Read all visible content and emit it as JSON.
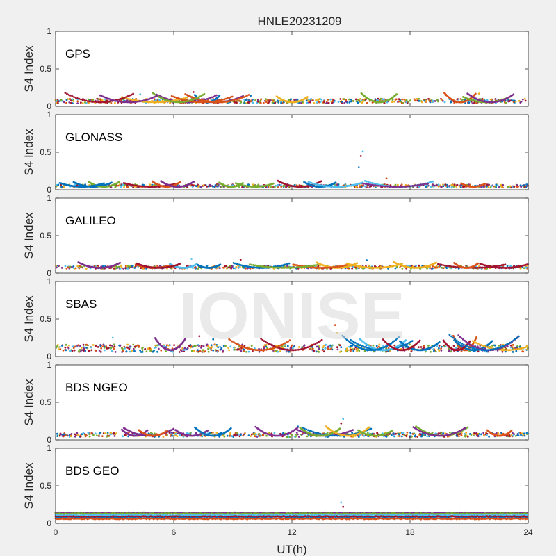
{
  "figure": {
    "title": "HNLE20231209",
    "watermark": "IONISE",
    "xlabel": "UT(h)"
  },
  "colors": [
    "#0072BD",
    "#D95319",
    "#EDB120",
    "#7E2F8E",
    "#77AC30",
    "#4DBEEE",
    "#A2142F"
  ],
  "chart_data": [
    {
      "type": "scatter",
      "panel_label": "GPS",
      "ylabel": "S4 Index",
      "xlim": [
        0,
        24
      ],
      "ylim": [
        0,
        1
      ],
      "xticks": [
        0,
        6,
        12,
        18,
        24
      ],
      "yticks": [
        0,
        0.5,
        1
      ],
      "grid": false,
      "baseline": 0.07,
      "spread": 0.03,
      "events": [
        {
          "x": 4.3,
          "y": 0.16
        },
        {
          "x": 7.0,
          "y": 0.19
        },
        {
          "x": 9.9,
          "y": 0.14
        },
        {
          "x": 19.8,
          "y": 0.15
        },
        {
          "x": 21.5,
          "y": 0.17
        }
      ]
    },
    {
      "type": "scatter",
      "panel_label": "GLONASS",
      "ylabel": "S4 Index",
      "xlim": [
        0,
        24
      ],
      "ylim": [
        0,
        1
      ],
      "xticks": [
        0,
        6,
        12,
        18,
        24
      ],
      "yticks": [
        0,
        0.5,
        1
      ],
      "grid": false,
      "baseline": 0.05,
      "spread": 0.02,
      "events": [
        {
          "x": 15.6,
          "y": 0.51
        },
        {
          "x": 15.5,
          "y": 0.45
        },
        {
          "x": 15.4,
          "y": 0.3
        },
        {
          "x": 16.8,
          "y": 0.15
        }
      ]
    },
    {
      "type": "scatter",
      "panel_label": "GALILEO",
      "ylabel": "S4 Index",
      "xlim": [
        0,
        24
      ],
      "ylim": [
        0,
        1
      ],
      "xticks": [
        0,
        6,
        12,
        18,
        24
      ],
      "yticks": [
        0,
        0.5,
        1
      ],
      "grid": false,
      "baseline": 0.08,
      "spread": 0.02,
      "events": [
        {
          "x": 6.9,
          "y": 0.19
        },
        {
          "x": 9.4,
          "y": 0.18
        },
        {
          "x": 15.8,
          "y": 0.17
        }
      ]
    },
    {
      "type": "scatter",
      "panel_label": "SBAS",
      "ylabel": "S4 Index",
      "xlim": [
        0,
        24
      ],
      "ylim": [
        0,
        1
      ],
      "xticks": [
        0,
        6,
        12,
        18,
        24
      ],
      "yticks": [
        0,
        0.5,
        1
      ],
      "grid": false,
      "baseline": 0.11,
      "spread": 0.05,
      "events": [
        {
          "x": 2.9,
          "y": 0.25
        },
        {
          "x": 7.3,
          "y": 0.27
        },
        {
          "x": 8.0,
          "y": 0.23
        },
        {
          "x": 14.2,
          "y": 0.42
        },
        {
          "x": 14.3,
          "y": 0.32
        }
      ]
    },
    {
      "type": "scatter",
      "panel_label": "BDS NGEO",
      "ylabel": "S4 Index",
      "xlim": [
        0,
        24
      ],
      "ylim": [
        0,
        1
      ],
      "xticks": [
        0,
        6,
        12,
        18,
        24
      ],
      "yticks": [
        0,
        0.5,
        1
      ],
      "grid": false,
      "baseline": 0.07,
      "spread": 0.03,
      "events": [
        {
          "x": 14.6,
          "y": 0.28
        },
        {
          "x": 14.5,
          "y": 0.22
        },
        {
          "x": 12.3,
          "y": 0.18
        }
      ]
    },
    {
      "type": "scatter",
      "panel_label": "BDS GEO",
      "ylabel": "S4 Index",
      "xlim": [
        0,
        24
      ],
      "ylim": [
        0,
        1
      ],
      "xticks": [
        0,
        6,
        12,
        18,
        24
      ],
      "yticks": [
        0,
        0.5,
        1
      ],
      "grid": false,
      "levels": [
        0.14,
        0.13,
        0.11,
        0.09,
        0.07,
        0.06
      ],
      "events": [
        {
          "x": 14.5,
          "y": 0.28
        },
        {
          "x": 14.6,
          "y": 0.22
        }
      ]
    }
  ]
}
